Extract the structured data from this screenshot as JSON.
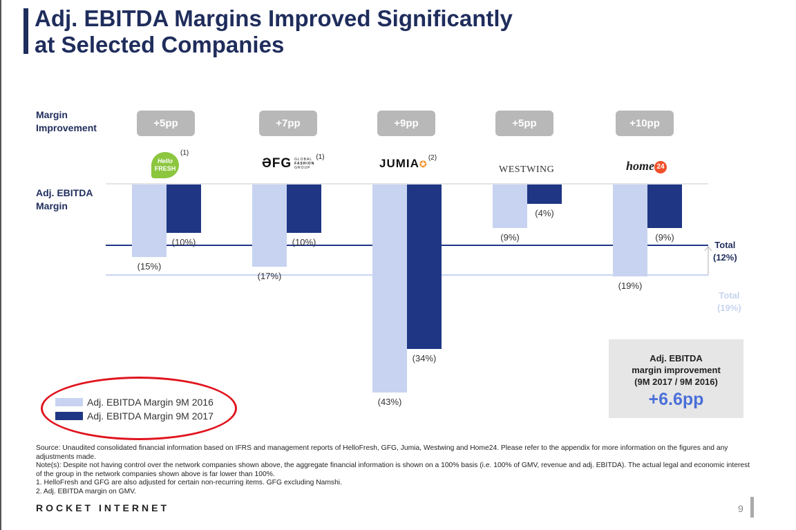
{
  "title_line1": "Adj. EBITDA Margins Improved Significantly",
  "title_line2": "at Selected Companies",
  "labels": {
    "margin_improvement_line1": "Margin",
    "margin_improvement_line2": "Improvement",
    "adj_ebitda_line1": "Adj. EBITDA",
    "adj_ebitda_line2": "Margin"
  },
  "companies": [
    {
      "name": "HelloFresh",
      "logo_line1": "Hello",
      "logo_line2": "FRESH",
      "footnote": "(1)",
      "improvement": "+5pp"
    },
    {
      "name": "GFG",
      "logo_main": "ƏFG",
      "logo_sub1": "GLOBAL",
      "logo_sub2": "FASHION",
      "logo_sub3": "GROUP",
      "footnote": "(1)",
      "improvement": "+7pp"
    },
    {
      "name": "Jumia",
      "logo_text": "JUMIA",
      "footnote": "(2)",
      "improvement": "+9pp"
    },
    {
      "name": "Westwing",
      "logo_text": "WESTWING",
      "footnote": "",
      "improvement": "+5pp"
    },
    {
      "name": "Home24",
      "logo_text": "home",
      "logo_badge": "24",
      "footnote": "",
      "improvement": "+10pp"
    }
  ],
  "totals": {
    "total_2017_line1": "Total",
    "total_2017_line2": "(12%)",
    "total_2016_line1": "Total",
    "total_2016_line2": "(19%)"
  },
  "summary": {
    "line1": "Adj. EBITDA",
    "line2": "margin improvement",
    "line3": "(9M 2017 / 9M 2016)",
    "value": "+6.6pp"
  },
  "legend": [
    {
      "label": "Adj. EBITDA Margin 9M 2016",
      "color": "#c7d3f0"
    },
    {
      "label": "Adj. EBITDA Margin 9M 2017",
      "color": "#1f3685"
    }
  ],
  "chart_data": {
    "type": "bar",
    "title": "Adj. EBITDA Margin",
    "categories": [
      "HelloFresh",
      "GFG",
      "Jumia",
      "Westwing",
      "Home24"
    ],
    "series": [
      {
        "name": "Adj. EBITDA Margin 9M 2016",
        "values": [
          -15,
          -17,
          -43,
          -9,
          -19
        ],
        "labels": [
          "(15%)",
          "(17%)",
          "(43%)",
          "(9%)",
          "(19%)"
        ],
        "color": "#c7d3f0"
      },
      {
        "name": "Adj. EBITDA Margin 9M 2017",
        "values": [
          -10,
          -10,
          -34,
          -4,
          -9
        ],
        "labels": [
          "(10%)",
          "(10%)",
          "(34%)",
          "(4%)",
          "(9%)"
        ],
        "color": "#1f3685"
      }
    ],
    "reference_lines": [
      {
        "name": "Total 9M 2017",
        "value": -12,
        "color": "#1f3685"
      },
      {
        "name": "Total 9M 2016",
        "value": -19,
        "color": "#c7d3f0"
      }
    ],
    "ylim": [
      -45,
      0
    ],
    "xlabel": "",
    "ylabel": "Adj. EBITDA Margin"
  },
  "footnotes": [
    "Source: Unaudited consolidated financial information based on IFRS and management reports of HelloFresh, GFG, Jumia, Westwing and Home24. Please refer to the appendix for more information on the figures and any adjustments made.",
    "Note(s): Despite not having control over the network companies shown above, the aggregate financial information is shown on a 100% basis (i.e. 100% of GMV, revenue and adj. EBITDA). The actual legal and economic interest of the group in the network companies shown above is far lower than 100%.",
    "1.    HelloFresh and GFG are also adjusted for certain non-recurring items. GFG excluding Namshi.",
    "2.    Adj. EBITDA margin on GMV."
  ],
  "brand": "ROCKET INTERNET",
  "page_number": "9"
}
